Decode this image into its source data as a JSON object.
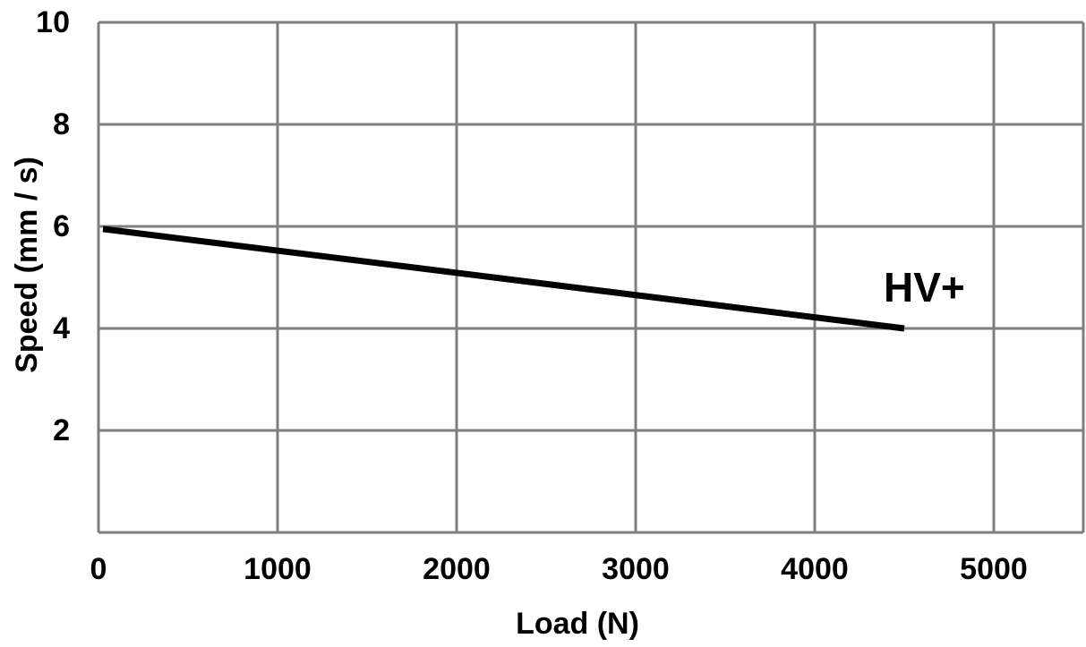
{
  "chart_data": {
    "type": "line",
    "xlabel": "Load (N)",
    "ylabel": "Speed (mm / s)",
    "xlim": [
      0,
      5500
    ],
    "ylim": [
      0,
      10
    ],
    "x_ticks": [
      0,
      1000,
      2000,
      3000,
      4000,
      5000
    ],
    "y_ticks": [
      2,
      4,
      6,
      8,
      10
    ],
    "x_tick_labels": [
      "0",
      "1000",
      "2000",
      "3000",
      "4000",
      "5000"
    ],
    "y_tick_labels": [
      "2",
      "4",
      "6",
      "8",
      "10"
    ],
    "grid": true,
    "series": [
      {
        "name": "HV+",
        "x": [
          25,
          4500
        ],
        "y": [
          5.95,
          4.0
        ],
        "color": "#000000"
      }
    ],
    "annotations": [
      {
        "text": "HV+",
        "series": 0
      }
    ]
  }
}
